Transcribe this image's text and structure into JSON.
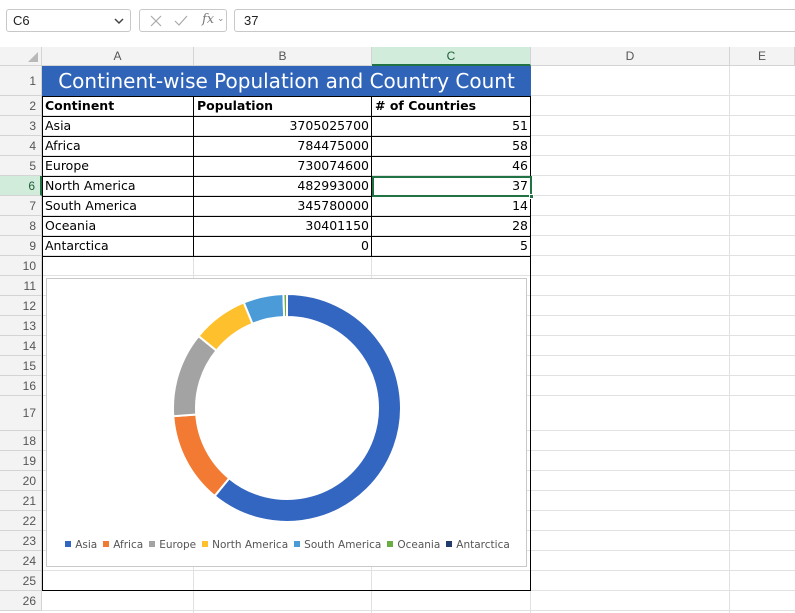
{
  "formula_bar": {
    "name_box": "C6",
    "fx_label": "fx",
    "formula_value": "37"
  },
  "columns": [
    "A",
    "B",
    "C",
    "D",
    "E"
  ],
  "selected_column": "C",
  "rows": [
    "1",
    "2",
    "3",
    "4",
    "5",
    "6",
    "7",
    "8",
    "9",
    "10",
    "11",
    "12",
    "13",
    "14",
    "15",
    "16",
    "17",
    "18",
    "19",
    "20",
    "21",
    "22",
    "23",
    "24",
    "25",
    "26"
  ],
  "selected_row": "6",
  "sheet": {
    "title": "Continent-wise Population and Country Count",
    "headers": [
      "Continent",
      "Population",
      "# of Countries"
    ],
    "data_rows": [
      [
        "Asia",
        "3705025700",
        "51"
      ],
      [
        "Africa",
        "784475000",
        "58"
      ],
      [
        "Europe",
        "730074600",
        "46"
      ],
      [
        "North America",
        "482993000",
        "37"
      ],
      [
        "South America",
        "345780000",
        "14"
      ],
      [
        "Oceania",
        "30401150",
        "28"
      ],
      [
        "Antarctica",
        "0",
        "5"
      ]
    ]
  },
  "chart_data": {
    "type": "pie",
    "variant": "doughnut",
    "categories": [
      "Asia",
      "Africa",
      "Europe",
      "North America",
      "South America",
      "Oceania",
      "Antarctica"
    ],
    "values": [
      3705025700,
      784475000,
      730074600,
      482993000,
      345780000,
      30401150,
      0
    ],
    "colors": [
      "#3366c0",
      "#f27a33",
      "#a3a3a3",
      "#fec02d",
      "#4b9bd9",
      "#6bad45",
      "#223d6b"
    ],
    "legend_position": "bottom",
    "title": ""
  }
}
